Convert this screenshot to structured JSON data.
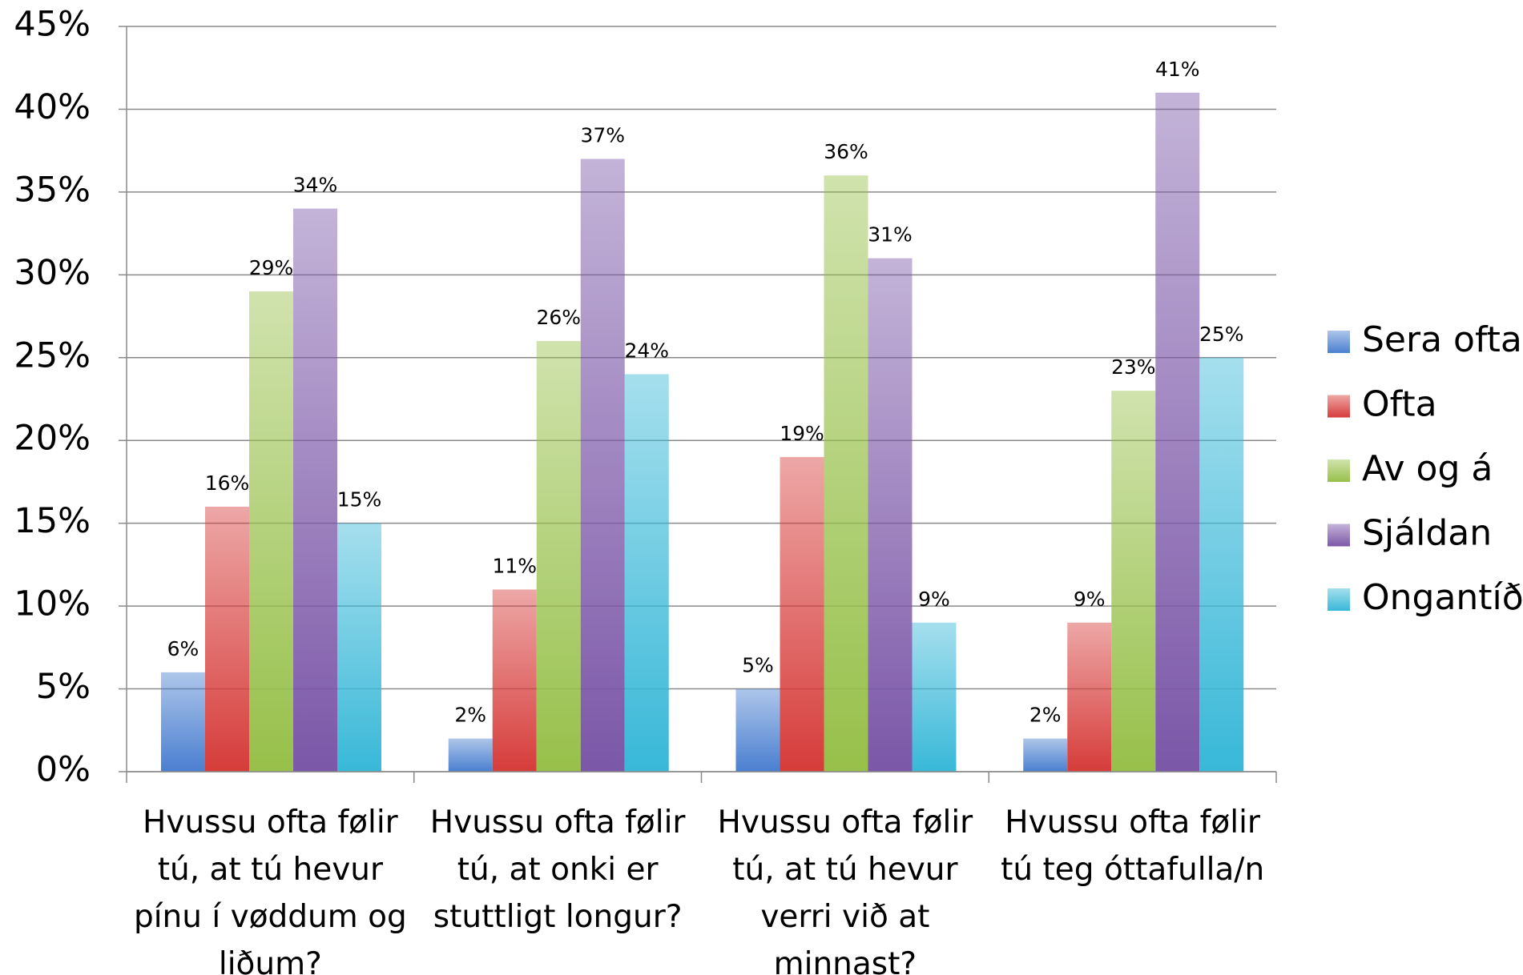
{
  "chart_data": {
    "type": "bar",
    "categories": [
      "Hvussu ofta følir tú, at tú hevur pínu í vøddum og liðum?",
      "Hvussu ofta følir tú, at onki er stuttligt longur?",
      "Hvussu ofta følir tú, at tú hevur verri við at minnast?",
      "Hvussu ofta følir tú teg óttafulla/n"
    ],
    "series": [
      {
        "name": "Sera ofta",
        "color": "#4a7fd0",
        "values": [
          6,
          2,
          5,
          2
        ],
        "value_labels": [
          "6%",
          "2%",
          "5%",
          "2%"
        ]
      },
      {
        "name": "Ofta",
        "color": "#d63c3a",
        "values": [
          16,
          11,
          19,
          9
        ],
        "value_labels": [
          "16%",
          "11%",
          "19%",
          "9%"
        ]
      },
      {
        "name": "Av og á",
        "color": "#97c04a",
        "values": [
          29,
          26,
          36,
          23
        ],
        "value_labels": [
          "29%",
          "26%",
          "36%",
          "23%"
        ]
      },
      {
        "name": "Sjáldan",
        "color": "#7b57a8",
        "values": [
          34,
          37,
          31,
          41
        ],
        "value_labels": [
          "34%",
          "37%",
          "31%",
          "41%"
        ]
      },
      {
        "name": "Ongantíð",
        "color": "#38b8d8",
        "values": [
          15,
          24,
          9,
          25
        ],
        "value_labels": [
          "15%",
          "24%",
          "9%",
          "25%"
        ]
      }
    ],
    "ylim": [
      0,
      45
    ],
    "yticks": [
      {
        "value": 0,
        "label": "0%"
      },
      {
        "value": 5,
        "label": "5%"
      },
      {
        "value": 10,
        "label": "10%"
      },
      {
        "value": 15,
        "label": "15%"
      },
      {
        "value": 20,
        "label": "20%"
      },
      {
        "value": 25,
        "label": "25%"
      },
      {
        "value": 30,
        "label": "30%"
      },
      {
        "value": 35,
        "label": "35%"
      },
      {
        "value": 40,
        "label": "40%"
      },
      {
        "value": 45,
        "label": "45%"
      }
    ],
    "grid": true,
    "legend": "right"
  }
}
